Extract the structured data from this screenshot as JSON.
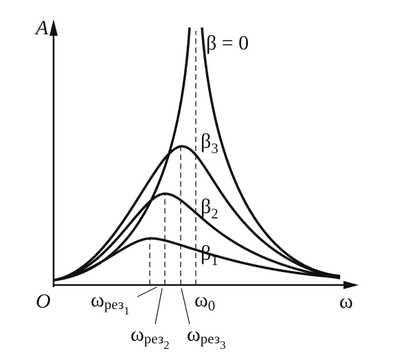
{
  "axes": {
    "y_label": "A",
    "origin": "O",
    "x_label": "ω"
  },
  "curves": [
    {
      "base": "β",
      "sub": "1"
    },
    {
      "base": "β",
      "sub": "2"
    },
    {
      "base": "β",
      "sub": "3"
    },
    {
      "label": "β = 0"
    }
  ],
  "frequencies": [
    {
      "base": "ω",
      "sub": "рез",
      "subsub": "1"
    },
    {
      "base": "ω",
      "sub": "рез",
      "subsub": "2"
    },
    {
      "base": "ω",
      "sub": "рез",
      "subsub": "3"
    },
    {
      "base": "ω",
      "sub": "0"
    }
  ]
}
